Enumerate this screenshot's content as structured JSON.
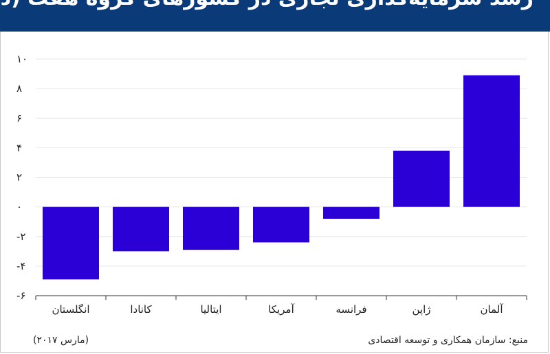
{
  "header": {
    "title": "رشد سرمایه‌گذاری تجاری در کشورهای گروه هفت (درصد)"
  },
  "footer": {
    "source": "منبع: سازمان همکاری و توسعه اقتصادی",
    "date": "(مارس ۲۰۱۷)"
  },
  "colors": {
    "bar": "#2a00d6",
    "header_bg": "#0b3a78",
    "grid": "#e6e6e6"
  },
  "chart_data": {
    "type": "bar",
    "title": "",
    "xlabel": "",
    "ylabel": "",
    "categories": [
      "انگلستان",
      "کانادا",
      "ایتالیا",
      "آمریکا",
      "فرانسه",
      "ژاپن",
      "آلمان"
    ],
    "values": [
      -4.9,
      -3.0,
      -2.9,
      -2.4,
      -0.8,
      3.8,
      8.9
    ],
    "ylim": [
      -6,
      10
    ],
    "y_ticks": [
      10,
      8,
      6,
      4,
      2,
      0,
      -2,
      -4,
      -6
    ],
    "y_tick_labels": [
      "۱۰",
      "۸",
      "۶",
      "۴",
      "۲",
      "۰",
      "-۲",
      "-۴",
      "-۶"
    ],
    "grid": true,
    "legend": "none"
  }
}
